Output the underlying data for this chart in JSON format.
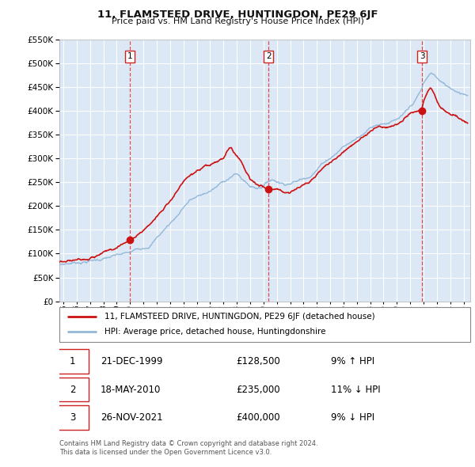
{
  "title": "11, FLAMSTEED DRIVE, HUNTINGDON, PE29 6JF",
  "subtitle": "Price paid vs. HM Land Registry's House Price Index (HPI)",
  "legend_line1": "11, FLAMSTEED DRIVE, HUNTINGDON, PE29 6JF (detached house)",
  "legend_line2": "HPI: Average price, detached house, Huntingdonshire",
  "footer1": "Contains HM Land Registry data © Crown copyright and database right 2024.",
  "footer2": "This data is licensed under the Open Government Licence v3.0.",
  "sales": [
    {
      "num": 1,
      "date": "21-DEC-1999",
      "price": 128500,
      "pct": "9%",
      "dir": "↑",
      "x_year": 1999.97
    },
    {
      "num": 2,
      "date": "18-MAY-2010",
      "price": 235000,
      "pct": "11%",
      "dir": "↓",
      "x_year": 2010.38
    },
    {
      "num": 3,
      "date": "26-NOV-2021",
      "price": 400000,
      "pct": "9%",
      "dir": "↓",
      "x_year": 2021.9
    }
  ],
  "table_rows": [
    {
      "num": "1",
      "date": "21-DEC-1999",
      "price": "£128,500",
      "info": "9% ↑ HPI"
    },
    {
      "num": "2",
      "date": "18-MAY-2010",
      "price": "£235,000",
      "info": "11% ↓ HPI"
    },
    {
      "num": "3",
      "date": "26-NOV-2021",
      "price": "£400,000",
      "info": "9% ↓ HPI"
    }
  ],
  "hpi_color": "#93b8d8",
  "price_color": "#cc1111",
  "dashed_color": "#dd3333",
  "plot_bg": "#dce8f5",
  "fig_bg": "#ffffff",
  "grid_color": "#ffffff",
  "ylim": [
    0,
    550000
  ],
  "xlim_start": 1994.7,
  "xlim_end": 2025.5,
  "yticks": [
    0,
    50000,
    100000,
    150000,
    200000,
    250000,
    300000,
    350000,
    400000,
    450000,
    500000,
    550000
  ]
}
